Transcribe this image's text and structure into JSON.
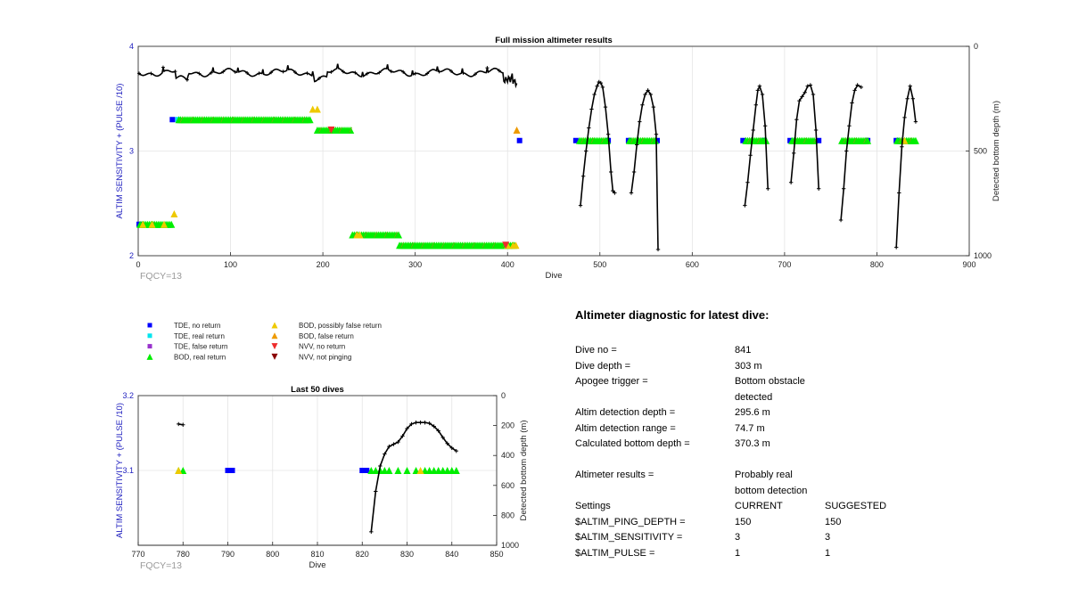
{
  "charts": {
    "top": {
      "title": "Full mission altimeter results",
      "xlabel": "Dive",
      "ylabel_left": "ALTIM SENSITIVITY + (PULSE /10)",
      "ylabel_right": "Detected bottom depth (m)",
      "xticks": [
        "0",
        "100",
        "200",
        "300",
        "400",
        "500",
        "600",
        "700",
        "800",
        "900"
      ],
      "yticks_left": [
        "2",
        "3",
        "4"
      ],
      "yticks_right": [
        "0",
        "500",
        "1000"
      ],
      "note": "FQCY=13"
    },
    "bottom": {
      "title": "Last 50 dives",
      "xlabel": "Dive",
      "ylabel_left": "ALTIM SENSITIVITY + (PULSE /10)",
      "ylabel_right": "Detected bottom depth (m)",
      "xticks": [
        "770",
        "780",
        "790",
        "800",
        "810",
        "820",
        "830",
        "840",
        "850"
      ],
      "yticks_left": [
        "3.1",
        "3.2"
      ],
      "yticks_right": [
        "0",
        "200",
        "400",
        "600",
        "800",
        "1000"
      ],
      "note": "FQCY=13"
    }
  },
  "legend": [
    {
      "label": "TDE, no return",
      "color": "#0000ff",
      "shape": "square"
    },
    {
      "label": "TDE, real return",
      "color": "#00e5ee",
      "shape": "square"
    },
    {
      "label": "TDE, false return",
      "color": "#9932cc",
      "shape": "square"
    },
    {
      "label": "BOD, real return",
      "color": "#00ee00",
      "shape": "triangle-up"
    },
    {
      "label": "BOD, possibly false return",
      "color": "#eec900",
      "shape": "triangle-up"
    },
    {
      "label": "BOD, false return",
      "color": "#ee9a00",
      "shape": "triangle-up"
    },
    {
      "label": "NVV, no return",
      "color": "#ee2c2c",
      "shape": "triangle-down"
    },
    {
      "label": "NVV, not pinging",
      "color": "#8b0000",
      "shape": "triangle-down"
    }
  ],
  "diagnostic": {
    "title": "Altimeter diagnostic for latest dive:",
    "rows": [
      {
        "label": "Dive no =",
        "v1": "841",
        "v2": ""
      },
      {
        "label": "Dive depth =",
        "v1": "303 m",
        "v2": ""
      },
      {
        "label": "Apogee trigger =",
        "v1": "Bottom obstacle detected",
        "v2": ""
      },
      null,
      {
        "label": "Altim detection depth =",
        "v1": "295.6 m",
        "v2": ""
      },
      {
        "label": "Altim detection range =",
        "v1": "74.7 m",
        "v2": ""
      },
      {
        "label": "Calculated bottom depth =",
        "v1": "370.3 m",
        "v2": ""
      },
      null,
      {
        "label": "Altimeter results =",
        "v1": "Probably real bottom detection",
        "v2": ""
      },
      null,
      {
        "label": "Settings",
        "v1": "CURRENT",
        "v2": "SUGGESTED"
      },
      {
        "label": "$ALTIM_PING_DEPTH =",
        "v1": "150",
        "v2": "150"
      },
      {
        "label": "$ALTIM_SENSITIVITY =",
        "v1": "3",
        "v2": "3"
      },
      {
        "label": "$ALTIM_PULSE =",
        "v1": "1",
        "v2": "1"
      }
    ]
  },
  "chart_data": [
    {
      "type": "scatter",
      "title": "Full mission altimeter results",
      "xlabel": "Dive",
      "ylabel": "ALTIM SENSITIVITY + (PULSE /10)",
      "y2label": "Detected bottom depth (m)",
      "xlim": [
        0,
        900
      ],
      "ylim": [
        2,
        4
      ],
      "y2lim": [
        1000,
        0
      ],
      "grid": true,
      "series": [
        {
          "name": "TDE, no return",
          "points": [
            [
              1,
              2.3
            ],
            [
              37,
              3.3
            ],
            [
              413,
              3.1
            ],
            [
              474,
              3.1
            ],
            [
              509,
              3.1
            ],
            [
              531,
              3.1
            ],
            [
              562,
              3.1
            ],
            [
              655,
              3.1
            ],
            [
              678,
              3.1
            ],
            [
              706,
              3.1
            ],
            [
              737,
              3.1
            ],
            [
              790,
              3.1
            ],
            [
              821,
              3.1
            ]
          ]
        },
        {
          "name": "TDE, real return",
          "points": [
            [
              43,
              3.3
            ]
          ]
        },
        {
          "name": "BOD, real return",
          "x_ranges": [
            [
              [
                2,
                36
              ],
              2.3
            ],
            [
              [
                44,
                186
              ],
              3.3
            ],
            [
              [
                194,
                231
              ],
              3.2
            ],
            [
              [
                232,
                282
              ],
              2.2
            ],
            [
              [
                283,
                408
              ],
              2.1
            ],
            [
              [
                478,
                508
              ],
              3.1
            ],
            [
              [
                532,
                560
              ],
              3.1
            ],
            [
              [
                658,
                680
              ],
              3.1
            ],
            [
              [
                708,
                733
              ],
              3.1
            ],
            [
              [
                762,
                790
              ],
              3.1
            ],
            [
              [
                822,
                842
              ],
              3.1
            ]
          ]
        },
        {
          "name": "BOD, possibly false return",
          "points": [
            [
              5,
              2.3
            ],
            [
              15,
              2.3
            ],
            [
              28,
              2.3
            ],
            [
              39,
              2.4
            ],
            [
              189,
              3.4
            ],
            [
              194,
              3.4
            ],
            [
              237,
              2.2
            ],
            [
              240,
              2.2
            ],
            [
              400,
              2.1
            ],
            [
              406,
              2.1
            ],
            [
              409,
              2.1
            ],
            [
              830,
              3.1
            ]
          ]
        },
        {
          "name": "BOD, false return",
          "points": [
            [
              410,
              3.2
            ]
          ]
        },
        {
          "name": "NVV, no return",
          "points": [
            [
              209,
              3.2
            ],
            [
              398,
              2.1
            ]
          ]
        },
        {
          "name": "Detected bottom depth (m)",
          "x_range": [
            1,
            410
          ],
          "depth_range_m": [
            75,
            175
          ],
          "note": "line"
        }
      ],
      "dive_profiles_depth_m": [
        {
          "x": [
            479,
            482,
            485,
            488,
            491,
            494,
            497,
            499,
            501,
            503,
            506,
            509,
            512,
            514,
            516
          ],
          "depth": [
            760,
            620,
            500,
            390,
            300,
            230,
            190,
            170,
            175,
            195,
            290,
            420,
            600,
            690,
            700
          ]
        },
        {
          "x": [
            534,
            537,
            540,
            543,
            546,
            549,
            552,
            555,
            558,
            561,
            563
          ],
          "depth": [
            700,
            600,
            470,
            360,
            280,
            230,
            210,
            230,
            290,
            420,
            970
          ]
        },
        {
          "x": [
            657,
            660,
            663,
            666,
            669,
            671,
            673,
            676,
            679,
            682
          ],
          "depth": [
            760,
            650,
            520,
            400,
            280,
            210,
            190,
            230,
            380,
            680
          ]
        },
        {
          "x": [
            707,
            710,
            713,
            716,
            719,
            722,
            725,
            728,
            731,
            734,
            737
          ],
          "depth": [
            650,
            510,
            350,
            260,
            240,
            220,
            190,
            185,
            230,
            400,
            680
          ]
        },
        {
          "x": [
            761,
            764,
            767,
            770,
            773,
            776,
            779,
            783
          ],
          "depth": [
            830,
            680,
            500,
            380,
            270,
            210,
            185,
            195
          ]
        },
        {
          "x": [
            821,
            824,
            827,
            830,
            833,
            836,
            839,
            842
          ],
          "depth": [
            960,
            700,
            480,
            340,
            250,
            190,
            250,
            360
          ]
        }
      ]
    },
    {
      "type": "scatter",
      "title": "Last 50 dives",
      "xlabel": "Dive",
      "ylabel": "ALTIM SENSITIVITY + (PULSE /10)",
      "y2label": "Detected bottom depth (m)",
      "xlim": [
        770,
        850
      ],
      "ylim": [
        3.0,
        3.2
      ],
      "y2lim": [
        1000,
        0
      ],
      "grid": true,
      "series": [
        {
          "name": "TDE, no return",
          "points": [
            [
              790,
              3.1
            ],
            [
              791,
              3.1
            ],
            [
              820,
              3.1
            ],
            [
              821,
              3.1
            ]
          ]
        },
        {
          "name": "BOD, real return",
          "points": [
            [
              779,
              3.1
            ],
            [
              780,
              3.1
            ],
            [
              822,
              3.1
            ],
            [
              823,
              3.1
            ],
            [
              824,
              3.1
            ],
            [
              825,
              3.1
            ],
            [
              826,
              3.1
            ],
            [
              828,
              3.1
            ],
            [
              830,
              3.1
            ],
            [
              832,
              3.1
            ],
            [
              834,
              3.1
            ],
            [
              835,
              3.1
            ],
            [
              836,
              3.1
            ],
            [
              837,
              3.1
            ],
            [
              838,
              3.1
            ],
            [
              839,
              3.1
            ],
            [
              840,
              3.1
            ],
            [
              841,
              3.1
            ]
          ]
        },
        {
          "name": "BOD, possibly false return",
          "points": [
            [
              779,
              3.1
            ],
            [
              833,
              3.1
            ]
          ]
        },
        {
          "name": "Detected bottom depth (m)",
          "x": [
            779,
            780,
            822,
            823,
            824,
            825,
            826,
            827,
            828,
            829,
            830,
            831,
            832,
            833,
            834,
            835,
            836,
            837,
            838,
            839,
            840,
            841
          ],
          "depth": [
            190,
            195,
            910,
            640,
            470,
            390,
            340,
            325,
            310,
            270,
            220,
            190,
            180,
            180,
            180,
            185,
            205,
            235,
            280,
            320,
            350,
            370
          ]
        }
      ]
    }
  ]
}
